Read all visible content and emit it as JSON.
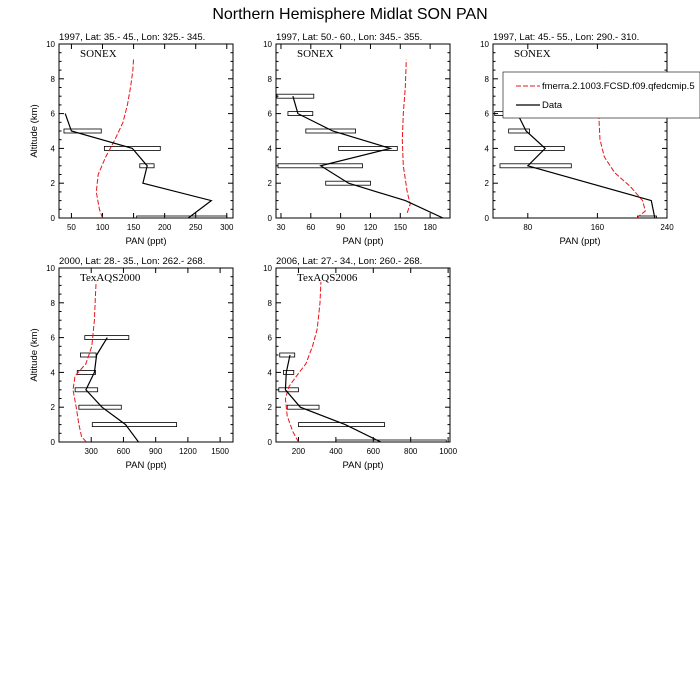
{
  "title": "Northern Hemisphere Midlat SON PAN",
  "chart_data": [
    {
      "type": "line",
      "subtitle": "1997, Lat: 35.- 45., Lon: 325.- 345.",
      "campaign": "SONEX",
      "xlabel": "PAN (ppt)",
      "ylabel": "Altitude (km)",
      "xlim": [
        30,
        310
      ],
      "ylim": [
        0,
        10
      ],
      "xticks": [
        50,
        100,
        150,
        200,
        250,
        300
      ],
      "yticks": [
        0,
        2,
        4,
        6,
        8,
        10
      ],
      "model": [
        {
          "x": 100,
          "y": 0
        },
        {
          "x": 95,
          "y": 0.5
        },
        {
          "x": 90,
          "y": 1.5
        },
        {
          "x": 93,
          "y": 2.5
        },
        {
          "x": 105,
          "y": 3.5
        },
        {
          "x": 120,
          "y": 4.5
        },
        {
          "x": 133,
          "y": 5.5
        },
        {
          "x": 140,
          "y": 6.5
        },
        {
          "x": 145,
          "y": 7.5
        },
        {
          "x": 149,
          "y": 8.5
        },
        {
          "x": 150,
          "y": 9.2
        }
      ],
      "obs": [
        {
          "x": 238,
          "y": 0,
          "lo": 155,
          "hi": 300
        },
        {
          "x": 275,
          "y": 1,
          "lo": 275,
          "hi": 275
        },
        {
          "x": 165,
          "y": 2,
          "lo": 165,
          "hi": 165
        },
        {
          "x": 172,
          "y": 3,
          "lo": 160,
          "hi": 183
        },
        {
          "x": 148,
          "y": 4,
          "lo": 103,
          "hi": 193
        },
        {
          "x": 50,
          "y": 5,
          "lo": 38,
          "hi": 98
        },
        {
          "x": 40,
          "y": 6,
          "lo": 40,
          "hi": 40
        }
      ]
    },
    {
      "type": "line",
      "subtitle": "1997, Lat: 50.- 60., Lon: 345.- 355.",
      "campaign": "SONEX",
      "xlabel": "PAN (ppt)",
      "ylabel": "",
      "xlim": [
        25,
        200
      ],
      "ylim": [
        0,
        10
      ],
      "xticks": [
        30,
        60,
        90,
        120,
        150,
        180
      ],
      "yticks": [
        0,
        2,
        4,
        6,
        8,
        10
      ],
      "model": [
        {
          "x": 157,
          "y": 0.3
        },
        {
          "x": 160,
          "y": 0.8
        },
        {
          "x": 157,
          "y": 1.5
        },
        {
          "x": 153,
          "y": 3
        },
        {
          "x": 152,
          "y": 4.5
        },
        {
          "x": 153,
          "y": 6
        },
        {
          "x": 155,
          "y": 7.5
        },
        {
          "x": 156,
          "y": 9.1
        }
      ],
      "obs": [
        {
          "x": 193,
          "y": 0,
          "lo": 193,
          "hi": 193
        },
        {
          "x": 155,
          "y": 1,
          "lo": 155,
          "hi": 155
        },
        {
          "x": 98,
          "y": 2,
          "lo": 75,
          "hi": 120
        },
        {
          "x": 70,
          "y": 3,
          "lo": 27,
          "hi": 112
        },
        {
          "x": 140,
          "y": 4,
          "lo": 88,
          "hi": 147
        },
        {
          "x": 82,
          "y": 5,
          "lo": 55,
          "hi": 105
        },
        {
          "x": 47,
          "y": 6,
          "lo": 37,
          "hi": 62
        },
        {
          "x": 42,
          "y": 7,
          "lo": 26,
          "hi": 63
        }
      ]
    },
    {
      "type": "line",
      "subtitle": "1997, Lat: 45.- 55., Lon: 290.- 310.",
      "campaign": "SONEX",
      "xlabel": "PAN (ppt)",
      "ylabel": "",
      "xlim": [
        40,
        240
      ],
      "ylim": [
        0,
        10
      ],
      "xticks": [
        80,
        160,
        240
      ],
      "yticks": [
        0,
        2,
        4,
        6,
        8,
        10
      ],
      "legend": [
        {
          "label": "fmerra.2.1003.FCSD.f09.qfedcmip.5",
          "style": "dashed-red"
        },
        {
          "label": "Data",
          "style": "solid-black"
        }
      ],
      "model": [
        {
          "x": 205,
          "y": 0
        },
        {
          "x": 215,
          "y": 0.4
        },
        {
          "x": 212,
          "y": 1
        },
        {
          "x": 198,
          "y": 1.8
        },
        {
          "x": 180,
          "y": 2.6
        },
        {
          "x": 168,
          "y": 3.5
        },
        {
          "x": 163,
          "y": 4.5
        },
        {
          "x": 162,
          "y": 5.5
        },
        {
          "x": 162,
          "y": 6.5
        },
        {
          "x": 165,
          "y": 8
        },
        {
          "x": 167,
          "y": 8.5
        }
      ],
      "obs": [
        {
          "x": 226,
          "y": 0,
          "lo": 206,
          "hi": 228
        },
        {
          "x": 222,
          "y": 1,
          "lo": 222,
          "hi": 222
        },
        {
          "x": 80,
          "y": 3,
          "lo": 48,
          "hi": 130
        },
        {
          "x": 100,
          "y": 4,
          "lo": 65,
          "hi": 122
        },
        {
          "x": 78,
          "y": 5,
          "lo": 58,
          "hi": 82
        },
        {
          "x": 68,
          "y": 6,
          "lo": 42,
          "hi": 98
        },
        {
          "x": 72,
          "y": 7,
          "lo": 58,
          "hi": 80
        },
        {
          "x": 70,
          "y": 8,
          "lo": 60,
          "hi": 82
        }
      ]
    },
    {
      "type": "line",
      "subtitle": "2000, Lat: 28.- 35., Lon: 262.- 268.",
      "campaign": "TexAQS2000",
      "xlabel": "PAN (ppt)",
      "ylabel": "Altitude (km)",
      "xlim": [
        0,
        1620
      ],
      "ylim": [
        0,
        10
      ],
      "xticks": [
        300,
        600,
        900,
        1200,
        1500
      ],
      "yticks": [
        0,
        2,
        4,
        6,
        8,
        10
      ],
      "model": [
        {
          "x": 255,
          "y": 0
        },
        {
          "x": 210,
          "y": 0.3
        },
        {
          "x": 185,
          "y": 1
        },
        {
          "x": 160,
          "y": 2
        },
        {
          "x": 130,
          "y": 3
        },
        {
          "x": 150,
          "y": 3.8
        },
        {
          "x": 250,
          "y": 4.5
        },
        {
          "x": 305,
          "y": 5.5
        },
        {
          "x": 330,
          "y": 7
        },
        {
          "x": 340,
          "y": 8.5
        },
        {
          "x": 345,
          "y": 9.2
        }
      ],
      "obs": [
        {
          "x": 740,
          "y": 0,
          "lo": 740,
          "hi": 740
        },
        {
          "x": 620,
          "y": 1,
          "lo": 310,
          "hi": 1095
        },
        {
          "x": 400,
          "y": 2,
          "lo": 185,
          "hi": 580
        },
        {
          "x": 250,
          "y": 3,
          "lo": 150,
          "hi": 360
        },
        {
          "x": 330,
          "y": 4,
          "lo": 170,
          "hi": 340
        },
        {
          "x": 350,
          "y": 5,
          "lo": 200,
          "hi": 345
        },
        {
          "x": 450,
          "y": 6,
          "lo": 240,
          "hi": 650
        }
      ]
    },
    {
      "type": "line",
      "subtitle": "2006, Lat: 27.- 34., Lon: 260.- 268.",
      "campaign": "TexAQS2006",
      "xlabel": "PAN (ppt)",
      "ylabel": "",
      "xlim": [
        80,
        1010
      ],
      "ylim": [
        0,
        10
      ],
      "xticks": [
        200,
        400,
        600,
        800,
        1000
      ],
      "yticks": [
        0,
        2,
        4,
        6,
        8,
        10
      ],
      "model": [
        {
          "x": 200,
          "y": 0
        },
        {
          "x": 170,
          "y": 0.6
        },
        {
          "x": 140,
          "y": 1.5
        },
        {
          "x": 130,
          "y": 2.5
        },
        {
          "x": 150,
          "y": 3.2
        },
        {
          "x": 190,
          "y": 3.8
        },
        {
          "x": 240,
          "y": 4.5
        },
        {
          "x": 275,
          "y": 5.5
        },
        {
          "x": 300,
          "y": 6.5
        },
        {
          "x": 315,
          "y": 8
        },
        {
          "x": 320,
          "y": 9.2
        }
      ],
      "obs": [
        {
          "x": 640,
          "y": 0,
          "lo": 400,
          "hi": 990
        },
        {
          "x": 450,
          "y": 1,
          "lo": 200,
          "hi": 660
        },
        {
          "x": 210,
          "y": 2,
          "lo": 140,
          "hi": 310
        },
        {
          "x": 130,
          "y": 3,
          "lo": 95,
          "hi": 200
        },
        {
          "x": 135,
          "y": 4,
          "lo": 120,
          "hi": 175
        },
        {
          "x": 155,
          "y": 5,
          "lo": 100,
          "hi": 180
        }
      ]
    }
  ]
}
